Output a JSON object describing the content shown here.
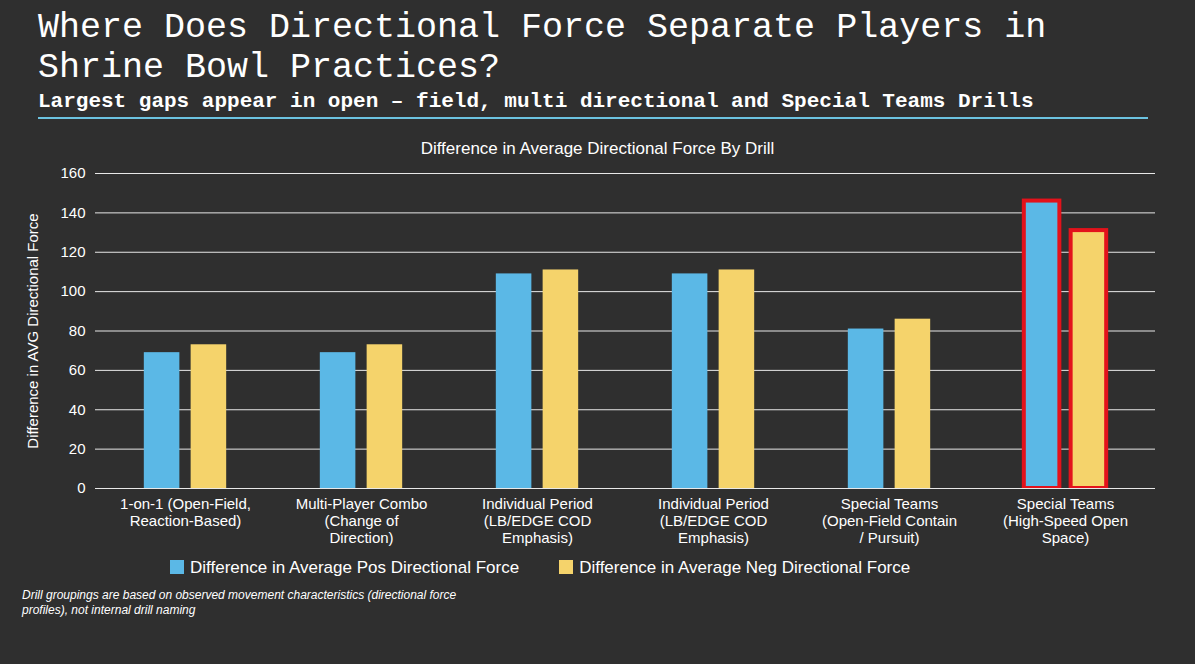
{
  "chart_data": {
    "type": "bar",
    "title": "Where Does Directional Force Separate Players in Shrine Bowl Practices?",
    "subtitle": "Largest gaps appear in open – field, multi directional and Special Teams Drills",
    "chart_title": "Difference in Average Directional Force By Drill",
    "footnote": "Drill groupings are based on observed movement characteristics (directional force profiles), not internal drill naming",
    "y_label": "Difference in AVG Directional Force",
    "categories": [
      "1-on-1 (Open-Field, Reaction-Based)",
      "Multi-Player Combo (Change of Direction)",
      "Individual Period (LB/EDGE COD Emphasis)",
      "Individual Period (LB/EDGE COD Emphasis)",
      "Special Teams (Open-Field Contain / Pursuit)",
      "Special Teams (High-Speed Open Space)"
    ],
    "series": [
      {
        "name": "Difference in Average Pos Directional Force",
        "color": "#5bb8e6",
        "values": [
          69,
          69,
          109,
          109,
          81,
          146
        ]
      },
      {
        "name": "Difference in Average Neg Directional Force",
        "color": "#f5d36b",
        "values": [
          73,
          73,
          111,
          111,
          86,
          131
        ]
      }
    ],
    "ylim": [
      0,
      160
    ],
    "yticks": [
      0,
      20,
      40,
      60,
      80,
      100,
      120,
      140,
      160
    ],
    "grid": true,
    "legend": "bottom"
  }
}
